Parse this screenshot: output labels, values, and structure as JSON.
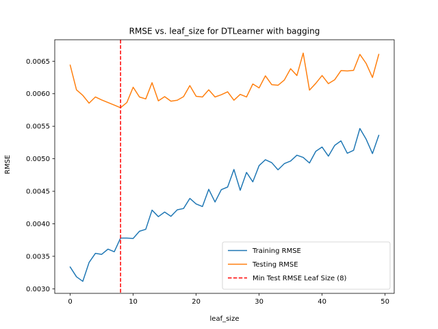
{
  "chart_data": {
    "type": "line",
    "title": "RMSE vs. leaf_size for DTLearner with bagging",
    "xlabel": "leaf_size",
    "ylabel": "RMSE",
    "xlim": [
      -2.45,
      51.45
    ],
    "ylim": [
      0.00293,
      0.00683
    ],
    "xticks": [
      0,
      10,
      20,
      30,
      40,
      50
    ],
    "yticks": [
      0.003,
      0.0035,
      0.004,
      0.0045,
      0.005,
      0.0055,
      0.006,
      0.0065
    ],
    "ytick_labels": [
      "0.0030",
      "0.0035",
      "0.0040",
      "0.0045",
      "0.0050",
      "0.0055",
      "0.0060",
      "0.0065"
    ],
    "x": [
      0,
      1,
      2,
      3,
      4,
      5,
      6,
      7,
      8,
      9,
      10,
      11,
      12,
      13,
      14,
      15,
      16,
      17,
      18,
      19,
      20,
      21,
      22,
      23,
      24,
      25,
      26,
      27,
      28,
      29,
      30,
      31,
      32,
      33,
      34,
      35,
      36,
      37,
      38,
      39,
      40,
      41,
      42,
      43,
      44,
      45,
      46,
      47,
      48,
      49
    ],
    "series": [
      {
        "name": "Training RMSE",
        "color": "#1f77b4",
        "values": [
          0.003335,
          0.003185,
          0.003115,
          0.003405,
          0.003545,
          0.00353,
          0.00361,
          0.00357,
          0.00378,
          0.00378,
          0.003775,
          0.003885,
          0.003915,
          0.00421,
          0.00411,
          0.00418,
          0.004115,
          0.004215,
          0.004235,
          0.00439,
          0.004305,
          0.004265,
          0.00453,
          0.004335,
          0.004525,
          0.004565,
          0.004835,
          0.004515,
          0.00479,
          0.004645,
          0.004895,
          0.004985,
          0.00494,
          0.00483,
          0.004925,
          0.004965,
          0.005055,
          0.00502,
          0.004935,
          0.005115,
          0.00518,
          0.00504,
          0.005205,
          0.005275,
          0.005085,
          0.00513,
          0.005465,
          0.0053,
          0.00508,
          0.00536
        ]
      },
      {
        "name": "Testing RMSE",
        "color": "#ff7f0e",
        "values": [
          0.00644,
          0.00606,
          0.005975,
          0.005855,
          0.00595,
          0.005905,
          0.005865,
          0.005825,
          0.005785,
          0.005865,
          0.0061,
          0.00595,
          0.00592,
          0.00617,
          0.00589,
          0.005955,
          0.005885,
          0.0059,
          0.005955,
          0.006125,
          0.00596,
          0.00595,
          0.00606,
          0.00595,
          0.005985,
          0.00603,
          0.0059,
          0.00599,
          0.00595,
          0.00615,
          0.00609,
          0.006275,
          0.00614,
          0.00613,
          0.00621,
          0.006385,
          0.00628,
          0.006625,
          0.006055,
          0.00616,
          0.00628,
          0.006155,
          0.006215,
          0.006355,
          0.00635,
          0.00636,
          0.006605,
          0.006465,
          0.00625,
          0.006605
        ]
      }
    ],
    "vline": {
      "x": 8,
      "color": "#ff0000",
      "name": "Min Test RMSE Leaf Size (8)"
    },
    "grid": false,
    "legend_placement": "lower-right"
  }
}
